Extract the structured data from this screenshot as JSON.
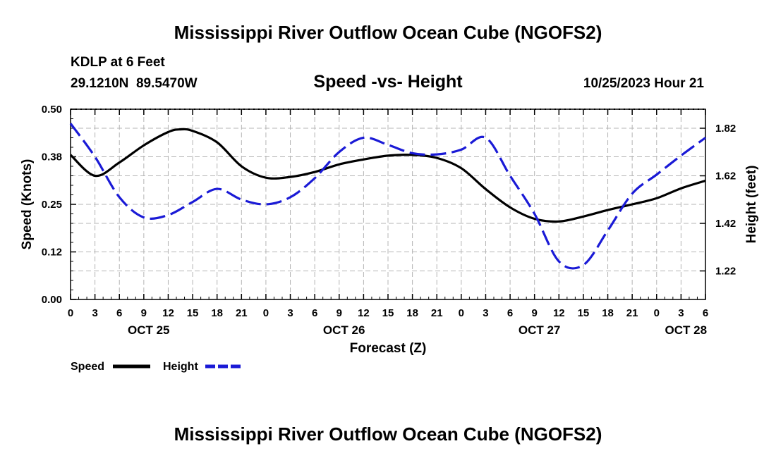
{
  "header": {
    "title": "Mississippi River Outflow Ocean Cube (NGOFS2)",
    "station": "KDLP at 6 Feet",
    "coords": "29.1210N  89.5470W",
    "plot_title": "Speed -vs- Height",
    "timestamp": "10/25/2023 Hour 21"
  },
  "footer": {
    "title": "Mississippi River Outflow Ocean Cube (NGOFS2)"
  },
  "legend": {
    "speed_label": "Speed",
    "height_label": "Height"
  },
  "colors": {
    "speed": "#000000",
    "height": "#1a1ad6",
    "grid": "#b4b4b4"
  },
  "chart_data": {
    "type": "line",
    "title": "Speed -vs- Height",
    "xlabel": "Forecast (Z)",
    "ylabel_left": "Speed (Knots)",
    "ylabel_right": "Height (feet)",
    "x_hours_range": [
      0,
      78
    ],
    "x_tick_labels": [
      "0",
      "3",
      "6",
      "9",
      "12",
      "15",
      "18",
      "21",
      "0",
      "3",
      "6",
      "9",
      "12",
      "15",
      "18",
      "21",
      "0",
      "3",
      "6",
      "9",
      "12",
      "15",
      "18",
      "21",
      "0",
      "3",
      "6"
    ],
    "date_labels": [
      {
        "label": "OCT 25",
        "hour": 9.6
      },
      {
        "label": "OCT 26",
        "hour": 33.6
      },
      {
        "label": "OCT 27",
        "hour": 57.6
      },
      {
        "label": "OCT 28",
        "hour": 75.6
      }
    ],
    "y_left": {
      "range": [
        0,
        0.5
      ],
      "ticks": [
        0.0,
        0.125,
        0.25,
        0.375,
        0.5
      ],
      "tick_labels": [
        "0.00",
        "0.12",
        "0.25",
        "0.38",
        "0.50"
      ]
    },
    "y_right": {
      "range": [
        1.1,
        1.9
      ],
      "ticks": [
        1.22,
        1.42,
        1.62,
        1.82
      ],
      "tick_labels": [
        "1.22",
        "1.42",
        "1.62",
        "1.82"
      ]
    },
    "series": [
      {
        "name": "Speed",
        "axis": "left",
        "style": "solid",
        "x": [
          0,
          3,
          6,
          9,
          12,
          13.5,
          15,
          18,
          21,
          24,
          27,
          30,
          33,
          36,
          39,
          42,
          45,
          48,
          51,
          54,
          57,
          60,
          63,
          66,
          69,
          72,
          75,
          78
        ],
        "y": [
          0.38,
          0.325,
          0.36,
          0.405,
          0.44,
          0.447,
          0.443,
          0.413,
          0.35,
          0.32,
          0.322,
          0.335,
          0.355,
          0.368,
          0.378,
          0.38,
          0.372,
          0.345,
          0.29,
          0.242,
          0.212,
          0.205,
          0.218,
          0.235,
          0.25,
          0.266,
          0.292,
          0.312
        ]
      },
      {
        "name": "Height",
        "axis": "right",
        "style": "dashed",
        "x": [
          0,
          3,
          6,
          9,
          12,
          15,
          18,
          21,
          24,
          27,
          30,
          33,
          36,
          39,
          42,
          45,
          48,
          51,
          54,
          57,
          60,
          63,
          66,
          69,
          72,
          75,
          78
        ],
        "y": [
          1.84,
          1.7,
          1.53,
          1.445,
          1.455,
          1.51,
          1.565,
          1.52,
          1.5,
          1.53,
          1.61,
          1.72,
          1.78,
          1.75,
          1.715,
          1.71,
          1.73,
          1.78,
          1.62,
          1.46,
          1.26,
          1.245,
          1.39,
          1.545,
          1.625,
          1.705,
          1.78
        ]
      }
    ]
  }
}
